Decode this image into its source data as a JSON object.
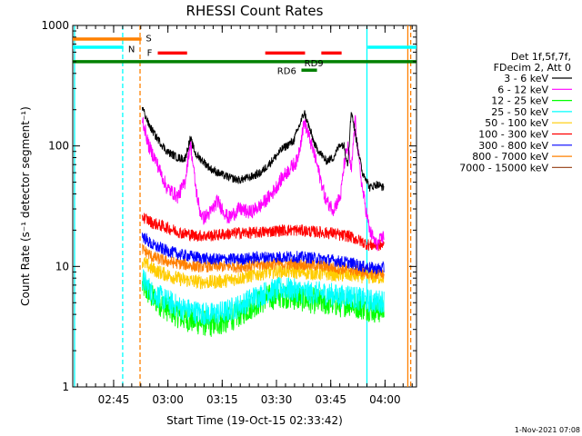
{
  "chart_data": {
    "type": "line",
    "title": "RHESSI Count Rates",
    "xlabel": "Start Time (19-Oct-15 02:33:42)",
    "ylabel": "Count Rate (s⁻¹ detector segment⁻¹)",
    "yscale": "log",
    "ylim": [
      1,
      1000
    ],
    "xlim_minutes": [
      0,
      95
    ],
    "y_ticks": [
      {
        "label": "1",
        "value": 1
      },
      {
        "label": "10",
        "value": 10
      },
      {
        "label": "100",
        "value": 100
      },
      {
        "label": "1000",
        "value": 1000
      }
    ],
    "x_ticks": [
      {
        "label": "02:45",
        "minutes": 11.3
      },
      {
        "label": "03:00",
        "minutes": 26.3
      },
      {
        "label": "03:15",
        "minutes": 41.3
      },
      {
        "label": "03:30",
        "minutes": 56.3
      },
      {
        "label": "03:45",
        "minutes": 71.3
      },
      {
        "label": "04:00",
        "minutes": 86.3
      }
    ],
    "legend_header": [
      "Det 1f,5f,7f,",
      "FDecim 2, Att 0"
    ],
    "series": [
      {
        "name": "3 - 6 keV",
        "color": "#000000",
        "x": [
          19.2,
          21,
          23,
          26,
          29,
          31,
          32.5,
          34,
          36,
          38,
          40,
          43,
          46,
          49,
          52,
          55,
          58,
          61,
          64,
          67,
          70,
          72,
          74,
          75,
          76,
          77,
          78,
          79,
          80,
          81,
          82,
          84,
          86
        ],
        "y": [
          210,
          150,
          120,
          90,
          80,
          78,
          115,
          85,
          75,
          65,
          60,
          55,
          52,
          55,
          60,
          75,
          95,
          110,
          190,
          100,
          75,
          80,
          105,
          100,
          70,
          200,
          130,
          90,
          60,
          55,
          45,
          48,
          45
        ]
      },
      {
        "name": "6 - 12 keV",
        "color": "#ff00ff",
        "x": [
          19.2,
          21,
          23,
          26,
          29,
          31,
          32.5,
          34,
          35,
          36,
          38,
          40,
          43,
          46,
          49,
          52,
          55,
          58,
          61,
          62,
          64,
          67,
          70,
          72,
          74,
          75,
          76,
          77,
          78,
          79,
          80,
          81,
          82,
          84,
          86
        ],
        "y": [
          170,
          100,
          75,
          45,
          38,
          50,
          108,
          45,
          30,
          25,
          28,
          35,
          25,
          30,
          28,
          32,
          40,
          55,
          70,
          75,
          160,
          80,
          35,
          30,
          38,
          70,
          100,
          60,
          170,
          80,
          45,
          30,
          20,
          15,
          18
        ]
      },
      {
        "name": "12 - 25 keV",
        "color": "#00ff00",
        "x": [
          19.2,
          22,
          26,
          30,
          34,
          38,
          42,
          46,
          50,
          54,
          58,
          62,
          66,
          70,
          72,
          74,
          76,
          78,
          80,
          82,
          84,
          86
        ],
        "y": [
          7,
          5.5,
          4.5,
          3.8,
          3.5,
          3.3,
          3.5,
          4,
          4.8,
          5.5,
          5.8,
          5.5,
          5.2,
          5,
          5,
          4.8,
          5,
          4.8,
          4.6,
          4.5,
          4.3,
          4.4
        ]
      },
      {
        "name": "25 - 50 keV",
        "color": "#00ffff",
        "x": [
          19.2,
          22,
          26,
          30,
          34,
          38,
          42,
          46,
          50,
          54,
          58,
          62,
          66,
          70,
          72,
          74,
          76,
          78,
          80,
          82,
          84,
          86
        ],
        "y": [
          8,
          6,
          5.2,
          4.5,
          4.2,
          4,
          4.2,
          4.7,
          5.5,
          6.2,
          6.6,
          6.3,
          6,
          6,
          5.8,
          5.6,
          5.8,
          5.5,
          5.3,
          5.2,
          5.1,
          5.2
        ]
      },
      {
        "name": "50 - 100 keV",
        "color": "#ffcc00",
        "x": [
          19.2,
          22,
          26,
          30,
          34,
          38,
          42,
          46,
          50,
          54,
          58,
          62,
          66,
          70,
          72,
          74,
          76,
          78,
          80,
          82,
          84,
          86
        ],
        "y": [
          11,
          9.5,
          8.5,
          7.8,
          7.5,
          7.4,
          7.6,
          8,
          8.5,
          9,
          9.2,
          9,
          8.8,
          8.7,
          8.6,
          8.5,
          8.5,
          8.4,
          8.3,
          8.2,
          8.1,
          8.2
        ]
      },
      {
        "name": "100 - 300 keV",
        "color": "#ff0000",
        "x": [
          19.2,
          22,
          26,
          30,
          34,
          38,
          42,
          46,
          50,
          54,
          58,
          62,
          66,
          70,
          72,
          74,
          76,
          78,
          80,
          82,
          84,
          86
        ],
        "y": [
          26,
          23,
          21,
          19,
          18,
          18,
          18.5,
          19,
          19,
          19.5,
          20,
          20,
          19.5,
          19,
          19,
          18,
          18,
          17,
          16,
          15,
          15,
          15
        ]
      },
      {
        "name": "300 - 800 keV",
        "color": "#0000ff",
        "x": [
          19.2,
          22,
          26,
          30,
          34,
          38,
          42,
          46,
          50,
          54,
          58,
          62,
          66,
          70,
          72,
          74,
          76,
          78,
          80,
          82,
          84,
          86
        ],
        "y": [
          18,
          15,
          13.5,
          12.5,
          12,
          11.5,
          11.5,
          11.5,
          11.8,
          12,
          12,
          12,
          11.8,
          11.5,
          11.2,
          11,
          10.8,
          10.5,
          10,
          9.8,
          9.6,
          9.7
        ]
      },
      {
        "name": "800 - 7000 keV",
        "color": "#ff8000",
        "x": [
          19.2,
          22,
          26,
          30,
          34,
          38,
          42,
          46,
          50,
          54,
          58,
          62,
          66,
          70,
          72,
          74,
          76,
          78,
          80,
          82,
          84,
          86
        ],
        "y": [
          14,
          12,
          11,
          10.5,
          10,
          10,
          10,
          10,
          10.2,
          10.5,
          10.5,
          10.5,
          10.3,
          10,
          9.8,
          9.6,
          9.5,
          9.3,
          9,
          8.8,
          8.7,
          8.8
        ]
      },
      {
        "name": "7000 - 15000 keV",
        "color": "#a0522d",
        "x": [],
        "y": []
      }
    ],
    "annotations": {
      "vertical_lines": [
        {
          "minutes": 0.5,
          "color": "#00ffff",
          "style": "solid"
        },
        {
          "minutes": 13.8,
          "color": "#00ffff",
          "style": "dashed"
        },
        {
          "minutes": 18.6,
          "color": "#ff8000",
          "style": "dashed"
        },
        {
          "minutes": 81.3,
          "color": "#00ffff",
          "style": "solid"
        },
        {
          "minutes": 92.6,
          "color": "#ff8000",
          "style": "solid"
        },
        {
          "minutes": 93.4,
          "color": "#ff8000",
          "style": "dashed"
        }
      ],
      "bars": [
        {
          "label": "S",
          "color": "#ff8000",
          "segments": [
            [
              0,
              19
            ]
          ],
          "y": 770,
          "label_at": 20.2,
          "label_y": 790
        },
        {
          "label": "N",
          "color": "#00ffff",
          "segments": [
            [
              0,
              14
            ],
            [
              81.5,
              95
            ]
          ],
          "y": 660,
          "label_at": 15.3,
          "label_y": 640
        },
        {
          "label": "F",
          "color": "#ff0000",
          "segments": [
            [
              23.5,
              31.6
            ],
            [
              53.2,
              64.2
            ],
            [
              68.7,
              74.3
            ]
          ],
          "y": 590,
          "label_at": 20.5,
          "label_y": 600
        },
        {
          "label": "RD9",
          "color": "#008000",
          "segments": [
            [
              0,
              95
            ]
          ],
          "y": 500,
          "label_at": 64,
          "label_y": 490
        },
        {
          "label": "RD6",
          "color": "#008000",
          "segments": [
            [
              63.2,
              67.5
            ]
          ],
          "y": 425,
          "label_at": 56.5,
          "label_y": 425
        }
      ]
    }
  },
  "timestamp": "1-Nov-2021 07:08"
}
